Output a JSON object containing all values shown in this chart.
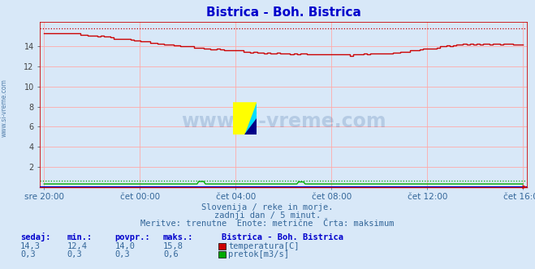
{
  "title": "Bistrica - Boh. Bistrica",
  "title_color": "#0000cc",
  "bg_color": "#d8e8f8",
  "plot_bg_color": "#d8e8f8",
  "grid_color": "#ffaaaa",
  "watermark": "www.si-vreme.com",
  "ylabel_text": "www.si-vreme.com",
  "subtitle_lines": [
    "Slovenija / reke in morje.",
    "zadnji dan / 5 minut.",
    "Meritve: trenutne  Enote: metrične  Črta: maksimum"
  ],
  "table_headers": [
    "sedaj:",
    "min.:",
    "povpr.:",
    "maks.:"
  ],
  "table_station": "Bistrica - Boh. Bistrica",
  "table_rows": [
    {
      "values": [
        "14,3",
        "12,4",
        "14,0",
        "15,8"
      ],
      "color": "#cc0000",
      "label": "temperatura[C]"
    },
    {
      "values": [
        "0,3",
        "0,3",
        "0,3",
        "0,6"
      ],
      "color": "#00aa00",
      "label": "pretok[m3/s]"
    }
  ],
  "x_tick_labels": [
    "sre 20:00",
    "čet 00:00",
    "čet 04:00",
    "čet 08:00",
    "čet 12:00",
    "čet 16:00"
  ],
  "x_tick_positions": [
    0,
    48,
    96,
    144,
    192,
    240
  ],
  "ylim": [
    0,
    16.5
  ],
  "yticks": [
    2,
    4,
    6,
    8,
    10,
    12,
    14
  ],
  "temp_max_line": 15.8,
  "flow_max_line": 0.6,
  "temp_color": "#cc0000",
  "flow_color": "#00aa00",
  "flow_line_color": "#0000cc",
  "axis_line_color": "#cc0000"
}
